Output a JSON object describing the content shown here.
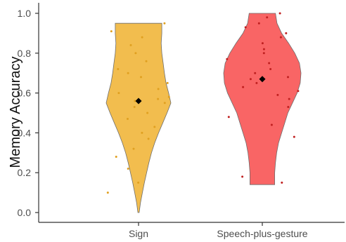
{
  "chart_data": {
    "type": "violin",
    "ylabel": "Memory Accuracy",
    "xlabel": "",
    "ylim": [
      0,
      1.0
    ],
    "yticks": [
      "0.0",
      "0.2",
      "0.4",
      "0.6",
      "0.8",
      "1.0"
    ],
    "grid": false,
    "legend": "none",
    "categories": [
      "Sign",
      "Speech-plus-gesture"
    ],
    "series": [
      {
        "category": "Sign",
        "fill_color": "#f2bd4e",
        "point_color": "#e0a020",
        "min": 0.0,
        "max": 0.95,
        "mean": 0.56,
        "density": [
          [
            0.0,
            0.02
          ],
          [
            0.05,
            0.06
          ],
          [
            0.1,
            0.12
          ],
          [
            0.15,
            0.18
          ],
          [
            0.2,
            0.25
          ],
          [
            0.25,
            0.32
          ],
          [
            0.3,
            0.4
          ],
          [
            0.35,
            0.5
          ],
          [
            0.4,
            0.62
          ],
          [
            0.45,
            0.75
          ],
          [
            0.5,
            0.88
          ],
          [
            0.55,
            1.0
          ],
          [
            0.6,
            0.93
          ],
          [
            0.65,
            0.85
          ],
          [
            0.7,
            0.8
          ],
          [
            0.75,
            0.76
          ],
          [
            0.8,
            0.72
          ],
          [
            0.85,
            0.7
          ],
          [
            0.9,
            0.72
          ],
          [
            0.95,
            0.72
          ]
        ],
        "points": [
          0.95,
          0.91,
          0.88,
          0.84,
          0.8,
          0.76,
          0.72,
          0.7,
          0.68,
          0.65,
          0.62,
          0.6,
          0.58,
          0.57,
          0.56,
          0.55,
          0.53,
          0.5,
          0.47,
          0.43,
          0.4,
          0.37,
          0.32,
          0.28,
          0.22,
          0.15,
          0.1
        ]
      },
      {
        "category": "Speech-plus-gesture",
        "fill_color": "#f96565",
        "point_color": "#c02020",
        "min": 0.14,
        "max": 1.0,
        "mean": 0.67,
        "density": [
          [
            0.14,
            0.32
          ],
          [
            0.2,
            0.32
          ],
          [
            0.25,
            0.34
          ],
          [
            0.3,
            0.37
          ],
          [
            0.35,
            0.42
          ],
          [
            0.4,
            0.5
          ],
          [
            0.45,
            0.58
          ],
          [
            0.5,
            0.66
          ],
          [
            0.55,
            0.78
          ],
          [
            0.6,
            0.9
          ],
          [
            0.65,
            0.98
          ],
          [
            0.7,
            1.0
          ],
          [
            0.75,
            0.96
          ],
          [
            0.8,
            0.84
          ],
          [
            0.85,
            0.68
          ],
          [
            0.9,
            0.5
          ],
          [
            0.95,
            0.38
          ],
          [
            1.0,
            0.34
          ]
        ],
        "points": [
          1.0,
          0.98,
          0.95,
          0.93,
          0.9,
          0.88,
          0.85,
          0.82,
          0.8,
          0.77,
          0.75,
          0.72,
          0.7,
          0.68,
          0.67,
          0.65,
          0.63,
          0.61,
          0.59,
          0.57,
          0.53,
          0.48,
          0.44,
          0.38,
          0.18,
          0.15
        ]
      }
    ]
  }
}
